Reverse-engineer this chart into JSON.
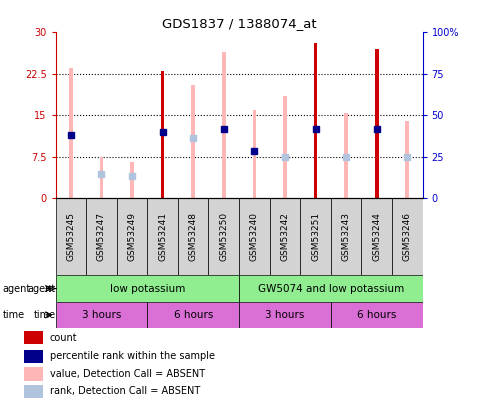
{
  "title": "GDS1837 / 1388074_at",
  "samples": [
    "GSM53245",
    "GSM53247",
    "GSM53249",
    "GSM53241",
    "GSM53248",
    "GSM53250",
    "GSM53240",
    "GSM53242",
    "GSM53251",
    "GSM53243",
    "GSM53244",
    "GSM53246"
  ],
  "pink_bar_heights": [
    23.5,
    7.5,
    6.5,
    23.0,
    20.5,
    26.5,
    16.0,
    18.5,
    28.0,
    15.5,
    27.0,
    14.0
  ],
  "red_bar_heights": [
    0,
    0,
    0,
    23.0,
    0,
    0,
    0,
    0,
    28.0,
    0,
    27.0,
    0
  ],
  "blue_dot_y": [
    11.5,
    0,
    0,
    12.0,
    0,
    12.5,
    8.5,
    0,
    12.5,
    0,
    12.5,
    0
  ],
  "light_blue_bar_y": [
    0,
    4.5,
    4.0,
    0,
    11.0,
    0,
    0,
    7.5,
    0,
    7.5,
    0,
    7.5
  ],
  "has_red": [
    false,
    false,
    false,
    true,
    false,
    false,
    false,
    false,
    true,
    false,
    true,
    false
  ],
  "has_blue_dot": [
    true,
    false,
    false,
    true,
    false,
    true,
    true,
    false,
    true,
    false,
    true,
    false
  ],
  "has_light_blue": [
    false,
    true,
    true,
    false,
    true,
    false,
    false,
    true,
    false,
    true,
    false,
    true
  ],
  "ylim": [
    0,
    30
  ],
  "yticks_left": [
    0,
    7.5,
    15,
    22.5,
    30
  ],
  "yticks_right": [
    0,
    25,
    50,
    75,
    100
  ],
  "ytick_labels_right": [
    "0",
    "25",
    "50",
    "75",
    "100%"
  ],
  "ytick_labels_left": [
    "0",
    "7.5",
    "15",
    "22.5",
    "30"
  ],
  "pink_color": "#ffb6b6",
  "red_color": "#cc0000",
  "blue_dot_color": "#00008b",
  "light_blue_color": "#b0c4de",
  "bg_color": "#ffffff",
  "left_tick_color": "#cc0000",
  "right_tick_color": "#0000cc",
  "agent_label_color": "#90ee90",
  "time_label_color": "#da70d6",
  "legend_items": [
    {
      "color": "#cc0000",
      "label": "count"
    },
    {
      "color": "#00008b",
      "label": "percentile rank within the sample"
    },
    {
      "color": "#ffb6b6",
      "label": "value, Detection Call = ABSENT"
    },
    {
      "color": "#b0c4de",
      "label": "rank, Detection Call = ABSENT"
    }
  ]
}
